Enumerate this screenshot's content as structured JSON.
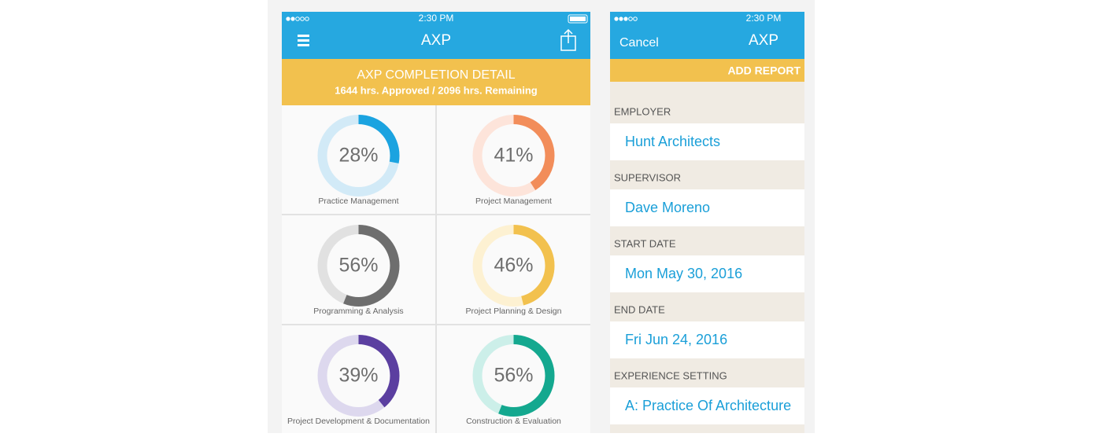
{
  "left_screen": {
    "status_time": "2:30 PM",
    "nav_title": "AXP",
    "banner": {
      "title": "AXP COMPLETION DETAIL",
      "subtitle": "1644 hrs. Approved / 2096 hrs. Remaining"
    },
    "cards": [
      {
        "label": "Practice Management",
        "value": 28,
        "value_label": "28%",
        "color": "#1ba3e0",
        "track": "#d2eaf7"
      },
      {
        "label": "Project Management",
        "value": 41,
        "value_label": "41%",
        "color": "#f28d5a",
        "track": "#fde4da"
      },
      {
        "label": "Programming & Analysis",
        "value": 56,
        "value_label": "56%",
        "color": "#6e6e6e",
        "track": "#e1e1e1"
      },
      {
        "label": "Project Planning & Design",
        "value": 46,
        "value_label": "46%",
        "color": "#f2c14e",
        "track": "#fdf1d2"
      },
      {
        "label": "Project Development & Documentation",
        "value": 39,
        "value_label": "39%",
        "color": "#5b3fa0",
        "track": "#ddd8ee"
      },
      {
        "label": "Construction & Evaluation",
        "value": 56,
        "value_label": "56%",
        "color": "#14a88f",
        "track": "#ccefe9"
      }
    ]
  },
  "right_screen": {
    "status_time": "2:30 PM",
    "cancel": "Cancel",
    "nav_title": "AXP",
    "action": "ADD REPORT",
    "fields": [
      {
        "label": "EMPLOYER",
        "value": "Hunt Architects"
      },
      {
        "label": "SUPERVISOR",
        "value": "Dave Moreno"
      },
      {
        "label": "START DATE",
        "value": "Mon May 30, 2016"
      },
      {
        "label": "END DATE",
        "value": "Fri Jun 24, 2016"
      },
      {
        "label": "EXPERIENCE SETTING",
        "value": "A: Practice Of Architecture"
      }
    ]
  }
}
